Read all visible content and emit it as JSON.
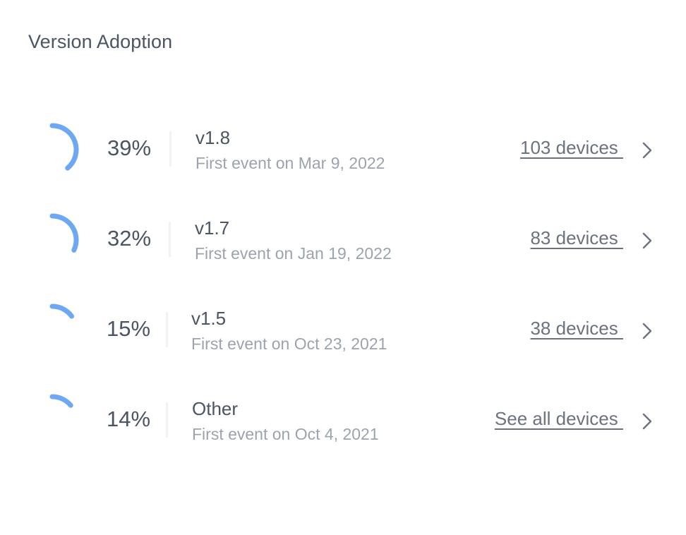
{
  "card": {
    "title": "Version Adoption"
  },
  "colors": {
    "arc": "#6ea8f5",
    "chevron": "#6b7280"
  },
  "versions": [
    {
      "percent_label": "39%",
      "percent": 39,
      "name": "v1.8",
      "first_event": "First event on Mar 9, 2022",
      "devices_label": "103 devices ",
      "chevron_icon": "chevron-right-icon"
    },
    {
      "percent_label": "32%",
      "percent": 32,
      "name": "v1.7",
      "first_event": "First event on Jan 19, 2022",
      "devices_label": "83 devices ",
      "chevron_icon": "chevron-right-icon"
    },
    {
      "percent_label": "15%",
      "percent": 15,
      "name": "v1.5",
      "first_event": "First event on Oct 23, 2021",
      "devices_label": "38 devices ",
      "chevron_icon": "chevron-right-icon"
    },
    {
      "percent_label": "14%",
      "percent": 14,
      "name": "Other",
      "first_event": "First event on Oct 4, 2021",
      "devices_label": "See all devices ",
      "chevron_icon": "chevron-right-icon"
    }
  ]
}
